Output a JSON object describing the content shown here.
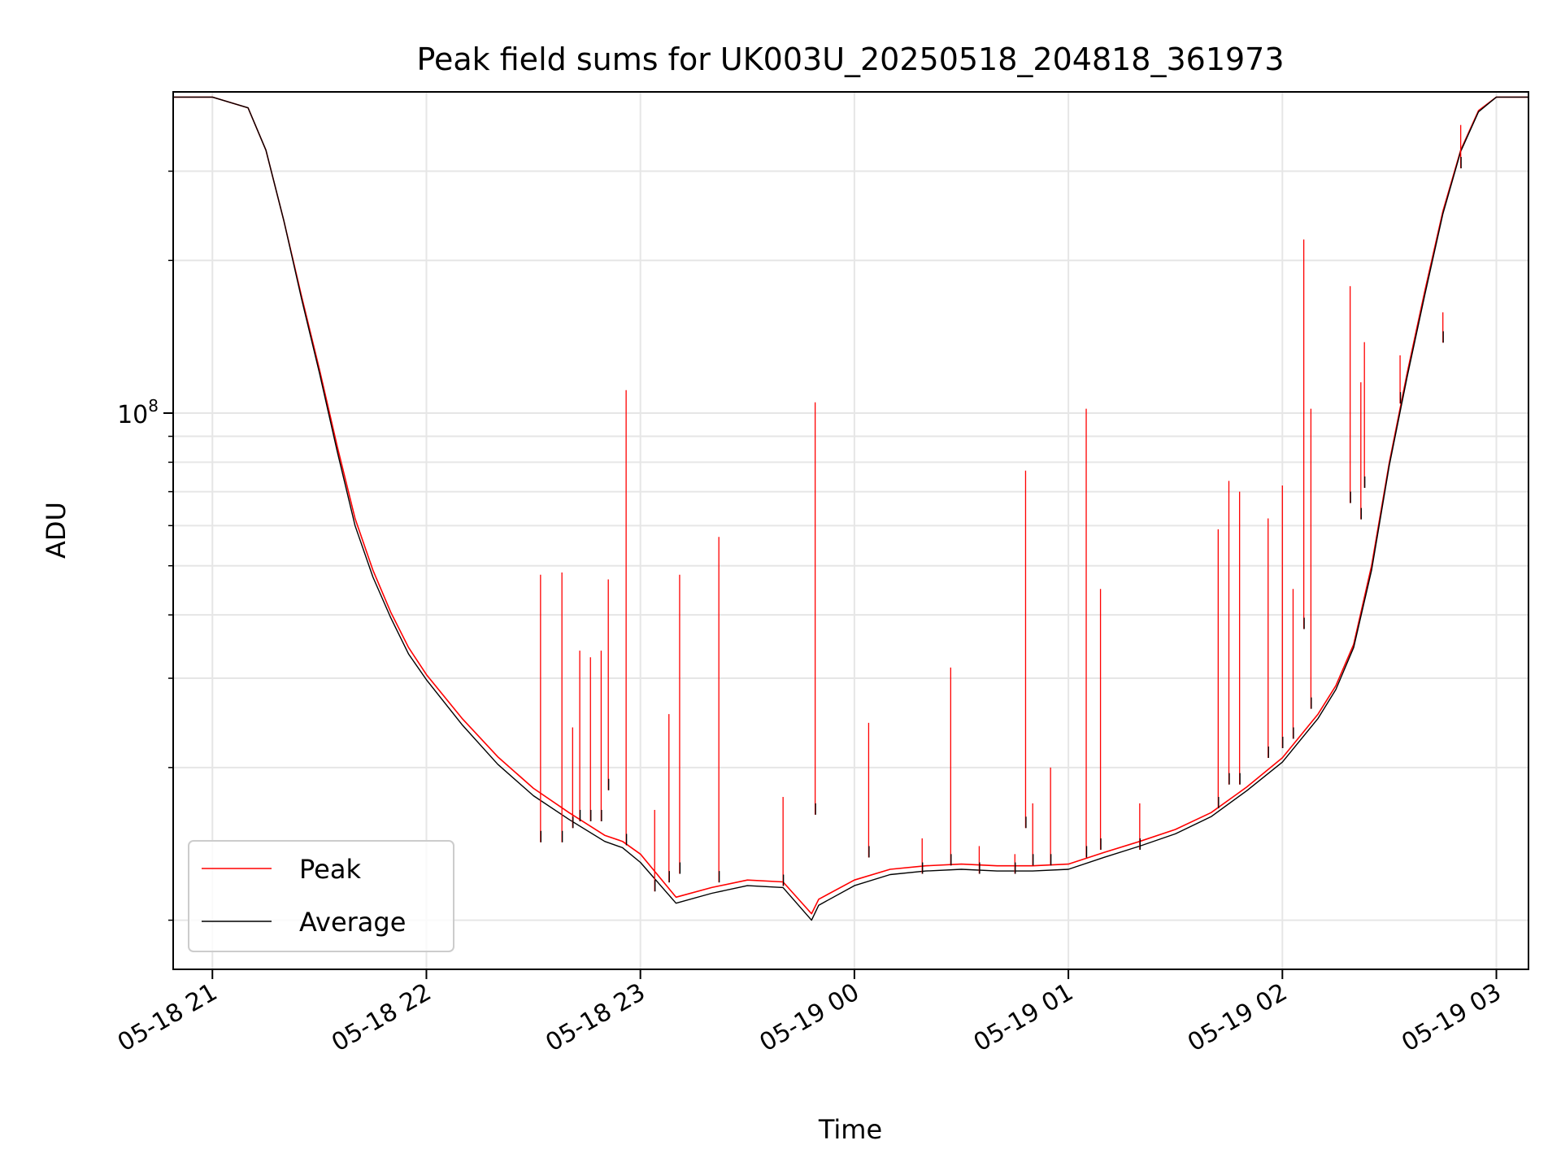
{
  "chart_data": {
    "type": "line",
    "title": "Peak field sums for UK003U_20250518_204818_361973",
    "xlabel": "Time",
    "ylabel": "ADU",
    "y_scale": "log",
    "ylim": [
      8000000,
      430000000
    ],
    "xlim": [
      "05-18 20:49",
      "05-19 03:09"
    ],
    "grid": true,
    "legend_position": "lower left",
    "x_ticks": [
      {
        "label": "05-18 21",
        "value": "05-18 21:00"
      },
      {
        "label": "05-18 22",
        "value": "05-18 22:00"
      },
      {
        "label": "05-18 23",
        "value": "05-18 23:00"
      },
      {
        "label": "05-19 00",
        "value": "05-19 00:00"
      },
      {
        "label": "05-19 01",
        "value": "05-19 01:00"
      },
      {
        "label": "05-19 02",
        "value": "05-19 02:00"
      },
      {
        "label": "05-19 03",
        "value": "05-19 03:00"
      }
    ],
    "y_major_tick": {
      "value": 100000000,
      "label_base": "10",
      "label_exp": "8"
    },
    "y_minor_ticks": [
      10000000,
      20000000,
      30000000,
      40000000,
      50000000,
      60000000,
      70000000,
      80000000,
      90000000,
      200000000,
      300000000
    ],
    "series": [
      {
        "name": "Peak",
        "color": "#ff0000",
        "x": [
          "05-18 20:48",
          "05-18 21:00",
          "05-18 21:10",
          "05-18 21:15",
          "05-18 21:20",
          "05-18 21:25",
          "05-18 21:30",
          "05-18 21:35",
          "05-18 21:40",
          "05-18 21:45",
          "05-18 21:50",
          "05-18 21:55",
          "05-18 22:00",
          "05-18 22:10",
          "05-18 22:20",
          "05-18 22:30",
          "05-18 22:40",
          "05-18 22:50",
          "05-18 22:55",
          "05-18 23:00",
          "05-18 23:10",
          "05-18 23:20",
          "05-18 23:30",
          "05-18 23:40",
          "05-18 23:48",
          "05-18 23:50",
          "05-19 00:00",
          "05-19 00:10",
          "05-19 00:20",
          "05-19 00:30",
          "05-19 00:40",
          "05-19 00:50",
          "05-19 01:00",
          "05-19 01:10",
          "05-19 01:20",
          "05-19 01:30",
          "05-19 01:40",
          "05-19 01:50",
          "05-19 02:00",
          "05-19 02:10",
          "05-19 02:15",
          "05-19 02:20",
          "05-19 02:25",
          "05-19 02:30",
          "05-19 02:35",
          "05-19 02:40",
          "05-19 02:45",
          "05-19 02:50",
          "05-19 02:55",
          "05-19 03:00",
          "05-19 03:09"
        ],
        "y": [
          420000000,
          420000000,
          400000000,
          330000000,
          240000000,
          170000000,
          122000000,
          86000000,
          62000000,
          49000000,
          40500000,
          34500000,
          30500000,
          25000000,
          21000000,
          18200000,
          16300000,
          14700000,
          14300000,
          13500000,
          11100000,
          11600000,
          12000000,
          11900000,
          10300000,
          11000000,
          12000000,
          12600000,
          12800000,
          12900000,
          12800000,
          12800000,
          12900000,
          13600000,
          14300000,
          15100000,
          16300000,
          18300000,
          20900000,
          25500000,
          29000000,
          35000000,
          50000000,
          80000000,
          120000000,
          175000000,
          250000000,
          330000000,
          395000000,
          420000000,
          420000000
        ]
      },
      {
        "name": "Average",
        "color": "#000000",
        "x": [
          "05-18 20:48",
          "05-18 21:00",
          "05-18 21:10",
          "05-18 21:15",
          "05-18 21:20",
          "05-18 21:25",
          "05-18 21:30",
          "05-18 21:35",
          "05-18 21:40",
          "05-18 21:45",
          "05-18 21:50",
          "05-18 21:55",
          "05-18 22:00",
          "05-18 22:10",
          "05-18 22:20",
          "05-18 22:30",
          "05-18 22:40",
          "05-18 22:50",
          "05-18 22:55",
          "05-18 23:00",
          "05-18 23:10",
          "05-18 23:20",
          "05-18 23:30",
          "05-18 23:40",
          "05-18 23:48",
          "05-18 23:50",
          "05-19 00:00",
          "05-19 00:10",
          "05-19 00:20",
          "05-19 00:30",
          "05-19 00:40",
          "05-19 00:50",
          "05-19 01:00",
          "05-19 01:10",
          "05-19 01:20",
          "05-19 01:30",
          "05-19 01:40",
          "05-19 01:50",
          "05-19 02:00",
          "05-19 02:10",
          "05-19 02:15",
          "05-19 02:20",
          "05-19 02:25",
          "05-19 02:30",
          "05-19 02:35",
          "05-19 02:40",
          "05-19 02:45",
          "05-19 02:50",
          "05-19 02:55",
          "05-19 03:00",
          "05-19 03:09"
        ],
        "y": [
          420000000,
          420000000,
          400000000,
          330000000,
          240000000,
          168000000,
          120000000,
          84000000,
          60000000,
          47500000,
          39500000,
          33500000,
          29800000,
          24300000,
          20300000,
          17600000,
          15800000,
          14300000,
          13900000,
          13000000,
          10800000,
          11300000,
          11700000,
          11600000,
          10000000,
          10700000,
          11700000,
          12300000,
          12500000,
          12600000,
          12500000,
          12500000,
          12600000,
          13300000,
          14000000,
          14800000,
          16000000,
          18000000,
          20500000,
          25000000,
          28500000,
          34500000,
          49000000,
          79000000,
          118000000,
          172000000,
          247000000,
          328000000,
          393000000,
          420000000,
          420000000
        ]
      }
    ],
    "spikes": [
      {
        "x": "05-18 22:32",
        "peak": 48000000,
        "average": 15000000
      },
      {
        "x": "05-18 22:38",
        "peak": 48500000,
        "average": 15000000
      },
      {
        "x": "05-18 22:41",
        "peak": 24000000,
        "average": 16000000
      },
      {
        "x": "05-18 22:43",
        "peak": 34000000,
        "average": 16500000
      },
      {
        "x": "05-18 22:46",
        "peak": 33000000,
        "average": 16500000
      },
      {
        "x": "05-18 22:49",
        "peak": 34000000,
        "average": 16500000
      },
      {
        "x": "05-18 22:51",
        "peak": 47000000,
        "average": 19000000
      },
      {
        "x": "05-18 22:56",
        "peak": 111000000,
        "average": 14800000
      },
      {
        "x": "05-18 23:04",
        "peak": 16500000,
        "average": 12000000
      },
      {
        "x": "05-18 23:08",
        "peak": 25500000,
        "average": 12500000
      },
      {
        "x": "05-18 23:11",
        "peak": 48000000,
        "average": 13000000
      },
      {
        "x": "05-18 23:22",
        "peak": 57000000,
        "average": 12500000
      },
      {
        "x": "05-18 23:40",
        "peak": 17500000,
        "average": 12300000
      },
      {
        "x": "05-18 23:49",
        "peak": 105000000,
        "average": 17000000
      },
      {
        "x": "05-19 00:04",
        "peak": 24500000,
        "average": 14000000
      },
      {
        "x": "05-19 00:19",
        "peak": 14500000,
        "average": 13000000
      },
      {
        "x": "05-19 00:27",
        "peak": 31500000,
        "average": 13500000
      },
      {
        "x": "05-19 00:35",
        "peak": 14000000,
        "average": 13000000
      },
      {
        "x": "05-19 00:45",
        "peak": 13500000,
        "average": 13000000
      },
      {
        "x": "05-19 00:48",
        "peak": 77000000,
        "average": 16000000
      },
      {
        "x": "05-19 00:50",
        "peak": 17000000,
        "average": 13500000
      },
      {
        "x": "05-19 00:55",
        "peak": 20000000,
        "average": 13500000
      },
      {
        "x": "05-19 01:05",
        "peak": 102000000,
        "average": 14000000
      },
      {
        "x": "05-19 01:09",
        "peak": 45000000,
        "average": 14500000
      },
      {
        "x": "05-19 01:20",
        "peak": 17000000,
        "average": 14500000
      },
      {
        "x": "05-19 01:42",
        "peak": 59000000,
        "average": 17500000
      },
      {
        "x": "05-19 01:45",
        "peak": 73500000,
        "average": 19500000
      },
      {
        "x": "05-19 01:48",
        "peak": 70000000,
        "average": 19500000
      },
      {
        "x": "05-19 01:56",
        "peak": 62000000,
        "average": 22000000
      },
      {
        "x": "05-19 02:00",
        "peak": 72000000,
        "average": 23000000
      },
      {
        "x": "05-19 02:03",
        "peak": 45000000,
        "average": 24000000
      },
      {
        "x": "05-19 02:06",
        "peak": 220000000,
        "average": 39500000
      },
      {
        "x": "05-19 02:08",
        "peak": 102000000,
        "average": 27500000
      },
      {
        "x": "05-19 02:19",
        "peak": 178000000,
        "average": 70000000
      },
      {
        "x": "05-19 02:22",
        "peak": 115000000,
        "average": 65000000
      },
      {
        "x": "05-19 02:23",
        "peak": 138000000,
        "average": 75000000
      },
      {
        "x": "05-19 02:33",
        "peak": 130000000,
        "average": 110000000
      },
      {
        "x": "05-19 02:45",
        "peak": 158000000,
        "average": 145000000
      },
      {
        "x": "05-19 02:50",
        "peak": 370000000,
        "average": 320000000
      }
    ]
  }
}
